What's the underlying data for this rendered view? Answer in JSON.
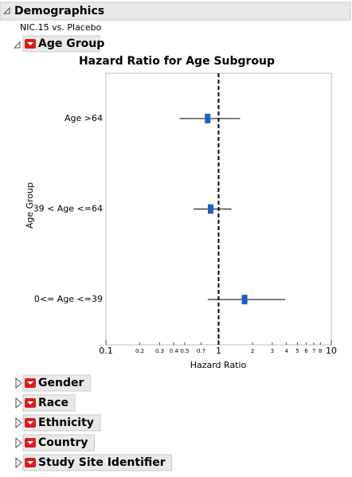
{
  "outline": {
    "title": "Demographics",
    "subtitle": "NIC.15 vs. Placebo",
    "open_section": "Age Group",
    "closed_sections": [
      "Gender",
      "Race",
      "Ethnicity",
      "Country",
      "Study Site Identifier"
    ]
  },
  "chart_data": {
    "type": "forest",
    "title": "Hazard Ratio for Age Subgroup",
    "x_label": "Hazard Ratio",
    "y_label": "Age Group",
    "categories": [
      "Age >64",
      "39 < Age <=64",
      "0<= Age <=39"
    ],
    "values": [
      0.8,
      0.85,
      1.7
    ],
    "lower": [
      0.45,
      0.6,
      0.8
    ],
    "upper": [
      1.55,
      1.3,
      3.9
    ],
    "color": "#1f5fc8",
    "log_x": true,
    "xlim": [
      0.1,
      10
    ],
    "xticks": [
      0.1,
      0.2,
      0.3,
      0.4,
      0.5,
      0.7,
      1,
      2,
      3,
      4,
      5,
      6,
      7,
      8,
      10
    ],
    "reference_line": 1
  }
}
